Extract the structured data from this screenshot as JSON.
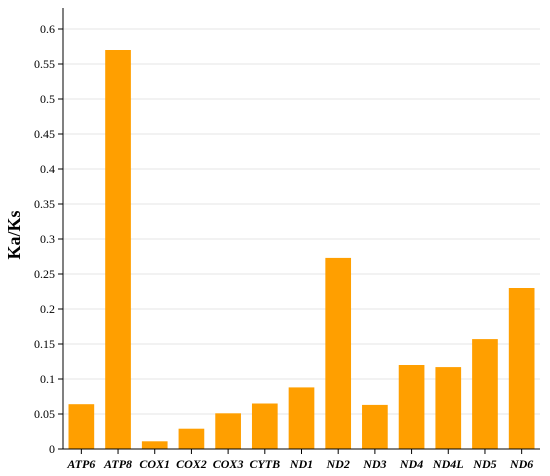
{
  "chart_data": {
    "type": "bar",
    "categories": [
      "ATP6",
      "ATP8",
      "COX1",
      "COX2",
      "COX3",
      "CYTB",
      "ND1",
      "ND2",
      "ND3",
      "ND4",
      "ND4L",
      "ND5",
      "ND6"
    ],
    "values": [
      0.064,
      0.57,
      0.011,
      0.029,
      0.051,
      0.065,
      0.088,
      0.273,
      0.063,
      0.12,
      0.117,
      0.157,
      0.23
    ],
    "title": "",
    "xlabel": "",
    "ylabel": "Ka/Ks",
    "ylim": [
      0,
      0.63
    ],
    "yticks": [
      0,
      0.05,
      0.1,
      0.15,
      0.2,
      0.25,
      0.3,
      0.35,
      0.4,
      0.45,
      0.5,
      0.55,
      0.6
    ],
    "ytick_labels": [
      "0",
      "0.05",
      "0.1",
      "0.15",
      "0.2",
      "0.25",
      "0.3",
      "0.35",
      "0.4",
      "0.45",
      "0.5",
      "0.55",
      "0.6"
    ],
    "grid": true,
    "bar_color": "#FF9F00"
  }
}
